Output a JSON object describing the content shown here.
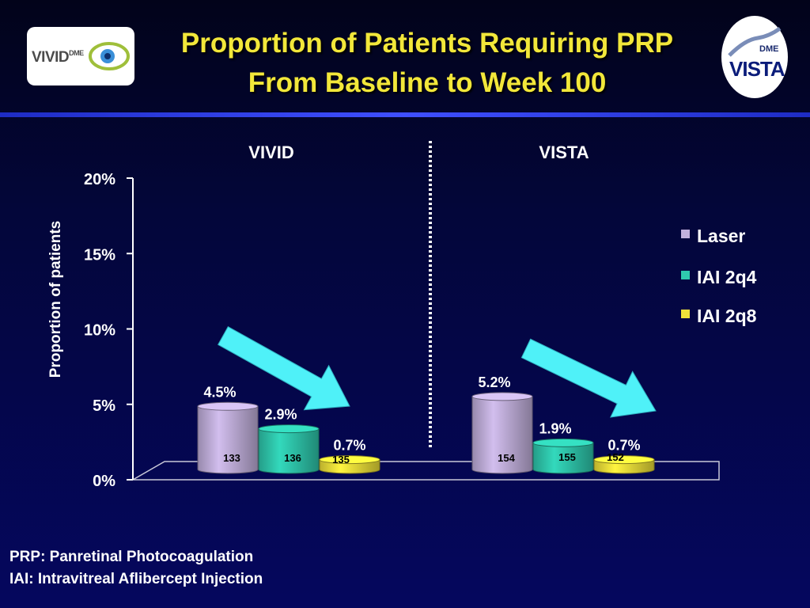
{
  "title_line1": "Proportion of Patients Requiring PRP",
  "title_line2": "From Baseline to Week 100",
  "logos": {
    "left_text": "VIVID",
    "left_sup": "DME",
    "right_top": "DME",
    "right_text": "VISTA"
  },
  "footnotes": [
    "PRP: Panretinal Photocoagulation",
    "IAI: Intravitreal Aflibercept Injection"
  ],
  "colors": {
    "title": "#f2e73a",
    "Laser": "#c2b0dc",
    "IAI 2q4": "#2fc9ae",
    "IAI 2q8": "#f0e23a",
    "arrow": "#4ff1f8"
  },
  "chart_data": {
    "type": "bar",
    "ylabel": "Proportion of patients",
    "ylim": [
      0,
      20
    ],
    "yticks": [
      "0%",
      "5%",
      "10%",
      "15%",
      "20%"
    ],
    "groups": [
      "VIVID",
      "VISTA"
    ],
    "series": [
      {
        "name": "Laser",
        "values": [
          4.5,
          5.2
        ],
        "labels": [
          "4.5%",
          "5.2%"
        ],
        "n": [
          "133",
          "154"
        ]
      },
      {
        "name": "IAI 2q4",
        "values": [
          2.9,
          1.9
        ],
        "labels": [
          "2.9%",
          "1.9%"
        ],
        "n": [
          "136",
          "155"
        ]
      },
      {
        "name": "IAI 2q8",
        "values": [
          0.7,
          0.7
        ],
        "labels": [
          "0.7%",
          "0.7%"
        ],
        "n": [
          "135",
          "152"
        ]
      }
    ],
    "legend_position": "right"
  }
}
